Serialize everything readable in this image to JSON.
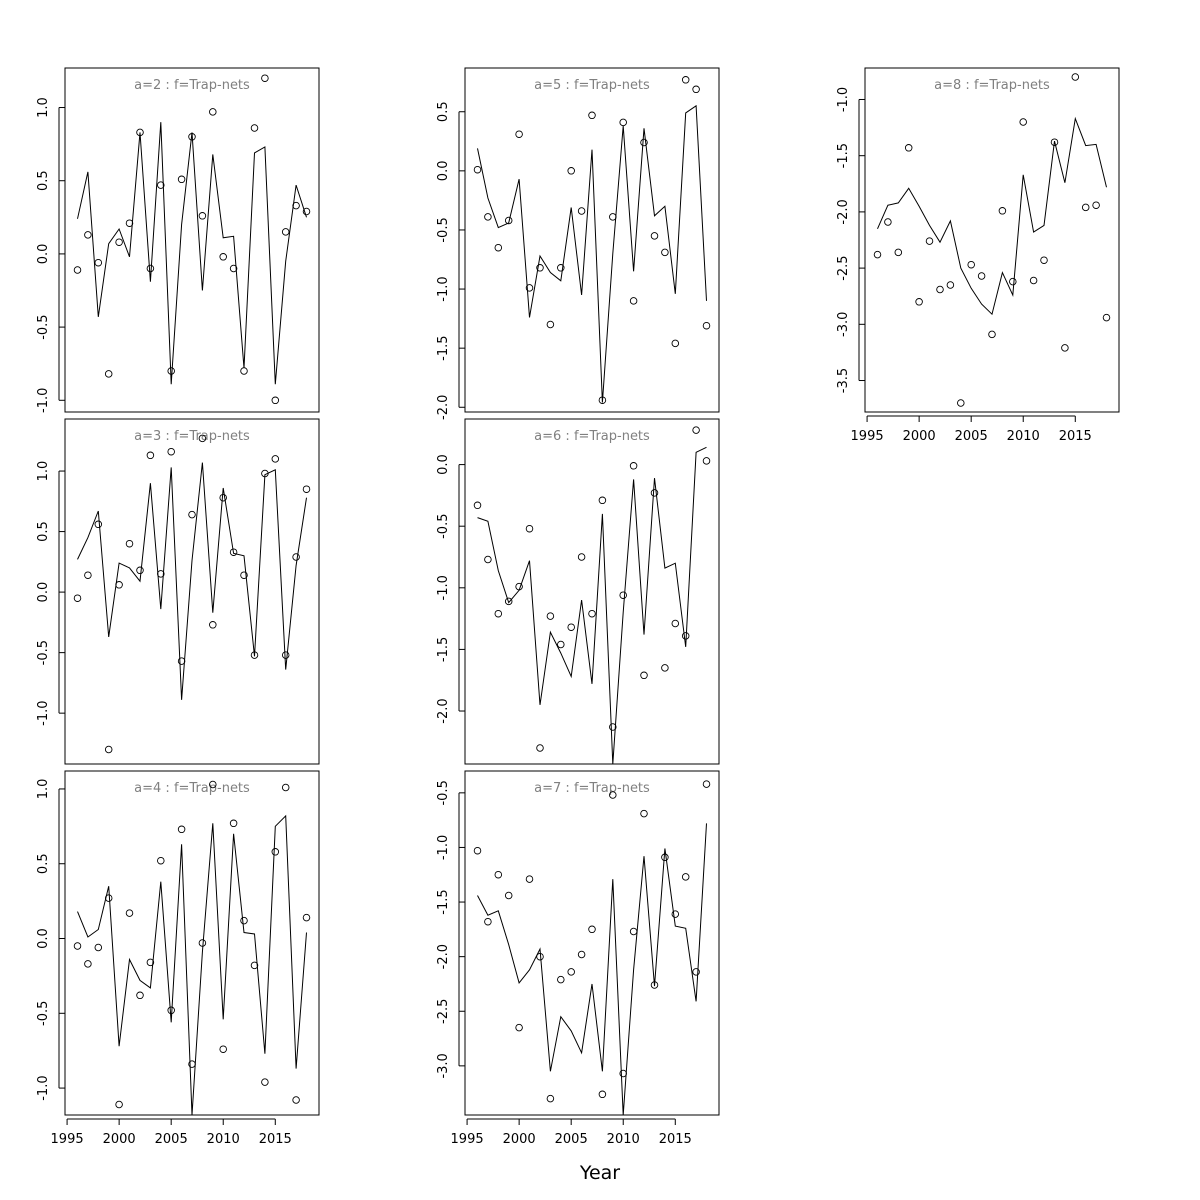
{
  "figure": {
    "xlabel": "Year"
  },
  "chart_data": [
    {
      "type": "scatter",
      "title": "a=2  :  f=Trap-nets",
      "ylim": [
        -1.08,
        1.27
      ],
      "yticks": [
        -1.0,
        -0.5,
        0.0,
        0.5,
        1.0
      ],
      "ytick_labels": [
        "-1.0",
        "-0.5",
        "0.0",
        "0.5",
        "1.0"
      ],
      "xlim": [
        1994.8,
        2019.2
      ],
      "xticks": [
        1995,
        2000,
        2005,
        2010,
        2015
      ],
      "xtick_labels": [],
      "years": [
        1996,
        1997,
        1998,
        1999,
        2000,
        2001,
        2002,
        2003,
        2004,
        2005,
        2006,
        2007,
        2008,
        2009,
        2010,
        2011,
        2012,
        2013,
        2014,
        2015,
        2016,
        2017,
        2018
      ],
      "observed": [
        -0.11,
        0.13,
        -0.06,
        -0.82,
        0.08,
        0.21,
        0.83,
        -0.1,
        0.47,
        -0.8,
        0.51,
        0.8,
        0.26,
        0.97,
        -0.02,
        -0.1,
        -0.8,
        0.86,
        1.2,
        -1.0,
        0.15,
        0.33,
        0.29
      ],
      "fitted": [
        0.24,
        0.56,
        -0.43,
        0.07,
        0.17,
        -0.02,
        0.83,
        -0.19,
        0.9,
        -0.89,
        0.2,
        0.83,
        -0.25,
        0.68,
        0.11,
        0.12,
        -0.78,
        0.69,
        0.73,
        -0.89,
        -0.05,
        0.47,
        0.25
      ]
    },
    {
      "type": "scatter",
      "title": "a=3  :  f=Trap-nets",
      "ylim": [
        -1.42,
        1.43
      ],
      "yticks": [
        -1.0,
        -0.5,
        0.0,
        0.5,
        1.0
      ],
      "ytick_labels": [
        "-1.0",
        "-0.5",
        "0.0",
        "0.5",
        "1.0"
      ],
      "xlim": [
        1994.8,
        2019.2
      ],
      "xticks": [
        1995,
        2000,
        2005,
        2010,
        2015
      ],
      "xtick_labels": [],
      "years": [
        1996,
        1997,
        1998,
        1999,
        2000,
        2001,
        2002,
        2003,
        2004,
        2005,
        2006,
        2007,
        2008,
        2009,
        2010,
        2011,
        2012,
        2013,
        2014,
        2015,
        2016,
        2017,
        2018
      ],
      "observed": [
        -0.05,
        0.14,
        0.56,
        -1.3,
        0.06,
        0.4,
        0.18,
        1.13,
        0.15,
        1.16,
        -0.57,
        0.64,
        1.27,
        -0.27,
        0.78,
        0.33,
        0.14,
        -0.52,
        0.98,
        1.1,
        -0.52,
        0.29,
        0.85
      ],
      "fitted": [
        0.27,
        0.45,
        0.67,
        -0.37,
        0.24,
        0.2,
        0.09,
        0.9,
        -0.14,
        1.03,
        -0.89,
        0.26,
        1.07,
        -0.17,
        0.86,
        0.32,
        0.3,
        -0.53,
        0.97,
        1.01,
        -0.64,
        0.22,
        0.78
      ]
    },
    {
      "type": "scatter",
      "title": "a=4  :  f=Trap-nets",
      "ylim": [
        -1.18,
        1.12
      ],
      "yticks": [
        -1.0,
        -0.5,
        0.0,
        0.5,
        1.0
      ],
      "ytick_labels": [
        "-1.0",
        "-0.5",
        "0.0",
        "0.5",
        "1.0"
      ],
      "xlim": [
        1994.8,
        2019.2
      ],
      "xticks": [
        1995,
        2000,
        2005,
        2010,
        2015
      ],
      "xtick_labels": [
        "1995",
        "2000",
        "2005",
        "2010",
        "2015"
      ],
      "years": [
        1996,
        1997,
        1998,
        1999,
        2000,
        2001,
        2002,
        2003,
        2004,
        2005,
        2006,
        2007,
        2008,
        2009,
        2010,
        2011,
        2012,
        2013,
        2014,
        2015,
        2016,
        2017,
        2018
      ],
      "observed": [
        -0.05,
        -0.17,
        -0.06,
        0.27,
        -1.11,
        0.17,
        -0.38,
        -0.16,
        0.52,
        -0.48,
        0.73,
        -0.84,
        -0.03,
        1.03,
        -0.74,
        0.77,
        0.12,
        -0.18,
        -0.96,
        0.58,
        1.01,
        -1.08,
        0.14
      ],
      "fitted": [
        0.18,
        0.01,
        0.06,
        0.35,
        -0.72,
        -0.14,
        -0.28,
        -0.33,
        0.38,
        -0.56,
        0.63,
        -1.18,
        -0.09,
        0.77,
        -0.54,
        0.7,
        0.04,
        0.03,
        -0.77,
        0.75,
        0.82,
        -0.87,
        0.04
      ]
    },
    {
      "type": "scatter",
      "title": "a=5  :  f=Trap-nets",
      "ylim": [
        -2.04,
        0.87
      ],
      "yticks": [
        -2.0,
        -1.5,
        -1.0,
        -0.5,
        0.0,
        0.5
      ],
      "ytick_labels": [
        "-2.0",
        "-1.5",
        "-1.0",
        "-0.5",
        "0.0",
        "0.5"
      ],
      "xlim": [
        1994.8,
        2019.2
      ],
      "xticks": [
        1995,
        2000,
        2005,
        2010,
        2015
      ],
      "xtick_labels": [],
      "years": [
        1996,
        1997,
        1998,
        1999,
        2000,
        2001,
        2002,
        2003,
        2004,
        2005,
        2006,
        2007,
        2008,
        2009,
        2010,
        2011,
        2012,
        2013,
        2014,
        2015,
        2016,
        2017,
        2018
      ],
      "observed": [
        0.01,
        -0.39,
        -0.65,
        -0.42,
        0.31,
        -0.99,
        -0.82,
        -1.3,
        -0.82,
        0.0,
        -0.34,
        0.47,
        -1.94,
        -0.39,
        0.41,
        -1.1,
        0.24,
        -0.55,
        -0.69,
        -1.46,
        0.77,
        0.69,
        -1.31
      ],
      "fitted": [
        0.19,
        -0.23,
        -0.48,
        -0.44,
        -0.07,
        -1.24,
        -0.72,
        -0.86,
        -0.93,
        -0.31,
        -1.05,
        0.18,
        -1.96,
        -0.7,
        0.38,
        -0.85,
        0.36,
        -0.38,
        -0.3,
        -1.04,
        0.49,
        0.55,
        -1.1
      ]
    },
    {
      "type": "scatter",
      "title": "a=6  :  f=Trap-nets",
      "ylim": [
        -2.43,
        0.37
      ],
      "yticks": [
        -2.0,
        -1.5,
        -1.0,
        -0.5,
        0.0
      ],
      "ytick_labels": [
        "-2.0",
        "-1.5",
        "-1.0",
        "-0.5",
        "0.0"
      ],
      "xlim": [
        1994.8,
        2019.2
      ],
      "xticks": [
        1995,
        2000,
        2005,
        2010,
        2015
      ],
      "xtick_labels": [],
      "years": [
        1996,
        1997,
        1998,
        1999,
        2000,
        2001,
        2002,
        2003,
        2004,
        2005,
        2006,
        2007,
        2008,
        2009,
        2010,
        2011,
        2012,
        2013,
        2014,
        2015,
        2016,
        2017,
        2018
      ],
      "observed": [
        -0.33,
        -0.77,
        -1.21,
        -1.11,
        -0.99,
        -0.52,
        -2.3,
        -1.23,
        -1.46,
        -1.32,
        -0.75,
        -1.21,
        -0.29,
        -2.13,
        -1.06,
        -0.01,
        -1.71,
        -0.23,
        -1.65,
        -1.29,
        -1.39,
        0.28,
        0.03
      ],
      "fitted": [
        -0.43,
        -0.46,
        -0.86,
        -1.12,
        -1.02,
        -0.78,
        -1.95,
        -1.36,
        -1.53,
        -1.72,
        -1.1,
        -1.78,
        -0.4,
        -2.43,
        -1.2,
        -0.12,
        -1.38,
        -0.11,
        -0.84,
        -0.8,
        -1.48,
        0.1,
        0.14
      ]
    },
    {
      "type": "scatter",
      "title": "a=7  :  f=Trap-nets",
      "ylim": [
        -3.45,
        -0.3
      ],
      "yticks": [
        -3.0,
        -2.5,
        -2.0,
        -1.5,
        -1.0,
        -0.5
      ],
      "ytick_labels": [
        "-3.0",
        "-2.5",
        "-2.0",
        "-1.5",
        "-1.0",
        "-0.5"
      ],
      "xlim": [
        1994.8,
        2019.2
      ],
      "xticks": [
        1995,
        2000,
        2005,
        2010,
        2015
      ],
      "xtick_labels": [
        "1995",
        "2000",
        "2005",
        "2010",
        "2015"
      ],
      "years": [
        1996,
        1997,
        1998,
        1999,
        2000,
        2001,
        2002,
        2003,
        2004,
        2005,
        2006,
        2007,
        2008,
        2009,
        2010,
        2011,
        2012,
        2013,
        2014,
        2015,
        2016,
        2017,
        2018
      ],
      "observed": [
        -1.03,
        -1.68,
        -1.25,
        -1.44,
        -2.65,
        -1.29,
        -2.0,
        -3.3,
        -2.21,
        -2.14,
        -1.98,
        -1.75,
        -3.26,
        -0.52,
        -3.07,
        -1.77,
        -0.69,
        -2.26,
        -1.09,
        -1.61,
        -1.27,
        -2.14,
        -0.42
      ],
      "fitted": [
        -1.44,
        -1.62,
        -1.58,
        -1.89,
        -2.24,
        -2.12,
        -1.93,
        -3.05,
        -2.55,
        -2.68,
        -2.88,
        -2.25,
        -3.05,
        -1.29,
        -3.45,
        -2.12,
        -1.08,
        -2.27,
        -1.01,
        -1.72,
        -1.74,
        -2.41,
        -0.78
      ]
    },
    {
      "type": "scatter",
      "title": "a=8  :  f=Trap-nets",
      "ylim": [
        -3.78,
        -0.72
      ],
      "yticks": [
        -3.5,
        -3.0,
        -2.5,
        -2.0,
        -1.5,
        -1.0
      ],
      "ytick_labels": [
        "-3.5",
        "-3.0",
        "-2.5",
        "-2.0",
        "-1.5",
        "-1.0"
      ],
      "xlim": [
        1994.8,
        2019.2
      ],
      "xticks": [
        1995,
        2000,
        2005,
        2010,
        2015
      ],
      "xtick_labels": [
        "1995",
        "2000",
        "2005",
        "2010",
        "2015"
      ],
      "years": [
        1996,
        1997,
        1998,
        1999,
        2000,
        2001,
        2002,
        2003,
        2004,
        2005,
        2006,
        2007,
        2008,
        2009,
        2010,
        2011,
        2012,
        2013,
        2014,
        2015,
        2016,
        2017,
        2018
      ],
      "observed": [
        -2.38,
        -2.09,
        -2.36,
        -1.43,
        -2.8,
        -2.26,
        -2.69,
        -2.65,
        -3.7,
        -2.47,
        -2.57,
        -3.09,
        -1.99,
        -2.62,
        -1.2,
        -2.61,
        -2.43,
        -1.38,
        -3.21,
        -0.8,
        -1.96,
        -1.94,
        -2.94
      ],
      "fitted": [
        -2.15,
        -1.94,
        -1.92,
        -1.79,
        -1.95,
        -2.12,
        -2.27,
        -2.08,
        -2.5,
        -2.68,
        -2.82,
        -2.91,
        -2.54,
        -2.74,
        -1.67,
        -2.18,
        -2.12,
        -1.37,
        -1.74,
        -1.17,
        -1.41,
        -1.4,
        -1.78
      ]
    }
  ]
}
